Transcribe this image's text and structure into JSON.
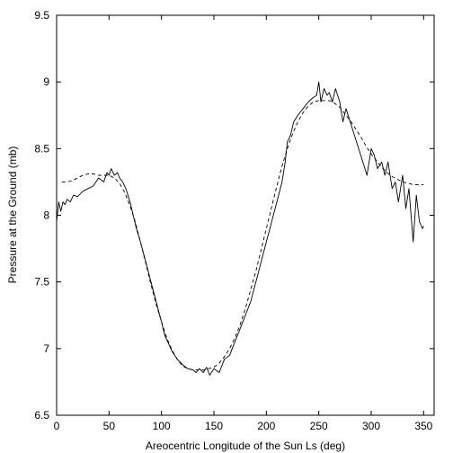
{
  "chart_data": {
    "type": "line",
    "title": "",
    "xlabel": "Areocentric Longitude of the Sun Ls (deg)",
    "ylabel": "Pressure at the Ground (mb)",
    "xlim": [
      0,
      360
    ],
    "ylim": [
      6.5,
      9.5
    ],
    "xticks": [
      0,
      50,
      100,
      150,
      200,
      250,
      300,
      350
    ],
    "yticks": [
      6.5,
      7,
      7.5,
      8,
      8.5,
      9,
      9.5
    ],
    "xtick_labels": [
      "0",
      "50",
      "100",
      "150",
      "200",
      "250",
      "300",
      "350"
    ],
    "ytick_labels": [
      "6.5",
      "7",
      "7.5",
      "8",
      "8.5",
      "9",
      "9.5"
    ],
    "grid": false,
    "legend": "none",
    "series": [
      {
        "style": "solid",
        "color": "#000000",
        "x": [
          0,
          2,
          4,
          6,
          8,
          10,
          13,
          16,
          20,
          25,
          30,
          35,
          40,
          45,
          48,
          50,
          52,
          55,
          58,
          60,
          63,
          66,
          70,
          73,
          76,
          80,
          85,
          90,
          95,
          100,
          103,
          106,
          110,
          115,
          120,
          125,
          130,
          133,
          136,
          140,
          143,
          146,
          150,
          155,
          160,
          165,
          170,
          175,
          180,
          185,
          190,
          195,
          200,
          205,
          210,
          215,
          218,
          220,
          223,
          226,
          230,
          235,
          240,
          244,
          248,
          250,
          252,
          255,
          258,
          260,
          263,
          266,
          270,
          273,
          276,
          280,
          284,
          288,
          292,
          296,
          300,
          303,
          306,
          310,
          313,
          316,
          320,
          323,
          326,
          330,
          333,
          336,
          340,
          343,
          346,
          349,
          350
        ],
        "y": [
          7.95,
          8.1,
          8.03,
          8.1,
          8.08,
          8.12,
          8.1,
          8.15,
          8.14,
          8.18,
          8.2,
          8.22,
          8.28,
          8.25,
          8.32,
          8.3,
          8.35,
          8.3,
          8.32,
          8.28,
          8.25,
          8.2,
          8.1,
          8.0,
          7.9,
          7.8,
          7.65,
          7.5,
          7.35,
          7.2,
          7.1,
          7.05,
          6.98,
          6.92,
          6.88,
          6.85,
          6.84,
          6.82,
          6.85,
          6.82,
          6.86,
          6.8,
          6.85,
          6.82,
          6.92,
          6.95,
          7.05,
          7.15,
          7.25,
          7.35,
          7.5,
          7.65,
          7.8,
          7.95,
          8.1,
          8.25,
          8.4,
          8.55,
          8.6,
          8.7,
          8.75,
          8.8,
          8.85,
          8.88,
          8.9,
          9.0,
          8.85,
          8.95,
          8.9,
          8.92,
          8.85,
          8.95,
          8.85,
          8.7,
          8.8,
          8.7,
          8.6,
          8.5,
          8.4,
          8.3,
          8.5,
          8.45,
          8.35,
          8.4,
          8.3,
          8.4,
          8.2,
          8.25,
          8.1,
          8.3,
          8.05,
          8.2,
          7.8,
          8.15,
          7.95,
          7.9,
          7.92
        ]
      },
      {
        "style": "dashed",
        "color": "#000000",
        "x": [
          5,
          10,
          15,
          20,
          25,
          30,
          35,
          40,
          45,
          50,
          55,
          60,
          65,
          70,
          75,
          80,
          85,
          90,
          95,
          100,
          105,
          110,
          115,
          120,
          125,
          130,
          135,
          140,
          145,
          150,
          155,
          160,
          165,
          170,
          175,
          180,
          185,
          190,
          195,
          200,
          205,
          210,
          215,
          220,
          225,
          230,
          235,
          240,
          245,
          250,
          255,
          260,
          265,
          270,
          275,
          280,
          285,
          290,
          295,
          300,
          305,
          310,
          315,
          320,
          325,
          330,
          335,
          340,
          345,
          350
        ],
        "y": [
          8.25,
          8.25,
          8.26,
          8.28,
          8.3,
          8.31,
          8.31,
          8.3,
          8.3,
          8.3,
          8.28,
          8.24,
          8.17,
          8.07,
          7.95,
          7.8,
          7.64,
          7.48,
          7.33,
          7.2,
          7.08,
          6.99,
          6.92,
          6.87,
          6.85,
          6.84,
          6.84,
          6.84,
          6.85,
          6.86,
          6.89,
          6.94,
          7.0,
          7.08,
          7.18,
          7.3,
          7.44,
          7.58,
          7.74,
          7.9,
          8.06,
          8.22,
          8.37,
          8.5,
          8.61,
          8.7,
          8.77,
          8.82,
          8.85,
          8.86,
          8.86,
          8.86,
          8.84,
          8.81,
          8.76,
          8.71,
          8.65,
          8.59,
          8.52,
          8.46,
          8.41,
          8.36,
          8.32,
          8.29,
          8.27,
          8.25,
          8.24,
          8.23,
          8.23,
          8.23
        ]
      }
    ]
  }
}
